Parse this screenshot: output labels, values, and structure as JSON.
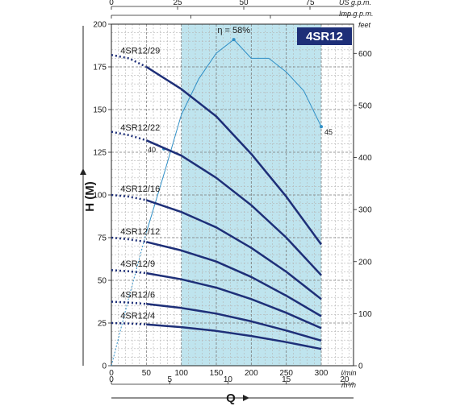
{
  "badge": "4SR12",
  "chart_data": {
    "type": "line",
    "xlabel": "Q",
    "ylabel": "H (M)",
    "x_unit": "l/min",
    "x_range": [
      0,
      300
    ],
    "y_range": [
      0,
      200
    ],
    "x_ticks": [
      "0",
      "50",
      "100",
      "150",
      "200",
      "250",
      "300"
    ],
    "y_ticks": [
      "0",
      "25",
      "50",
      "75",
      "100",
      "125",
      "150",
      "175",
      "200"
    ],
    "top_axis_us": {
      "unit": "US g.p.m.",
      "ticks": [
        "0",
        "25",
        "50",
        "75"
      ]
    },
    "top_axis_imp": {
      "unit": "Imp g.p.m.",
      "ticks": [
        "0",
        "25",
        "50"
      ]
    },
    "bottom_axis_m3h": {
      "unit": "m³/h",
      "ticks": [
        "0",
        "5",
        "10",
        "15",
        "20"
      ]
    },
    "right_axis_feet": {
      "unit": "feet",
      "ticks": [
        "0",
        "100",
        "200",
        "300",
        "400",
        "500",
        "600"
      ]
    },
    "operating_range": [
      100,
      300
    ],
    "series": [
      {
        "name": "4SR12/29",
        "x": [
          0,
          25,
          50,
          100,
          150,
          200,
          250,
          300
        ],
        "y": [
          182,
          180,
          175,
          162,
          146,
          124,
          99,
          71
        ]
      },
      {
        "name": "4SR12/22",
        "x": [
          0,
          25,
          50,
          100,
          150,
          200,
          250,
          300
        ],
        "y": [
          137,
          135,
          132,
          123,
          110,
          94,
          75,
          53
        ]
      },
      {
        "name": "4SR12/16",
        "x": [
          0,
          25,
          50,
          100,
          150,
          200,
          250,
          300
        ],
        "y": [
          100,
          99,
          97,
          90,
          81,
          69,
          55,
          39
        ]
      },
      {
        "name": "4SR12/12",
        "x": [
          0,
          25,
          50,
          100,
          150,
          200,
          250,
          300
        ],
        "y": [
          75,
          74,
          72.5,
          67.5,
          61,
          52,
          41,
          29
        ]
      },
      {
        "name": "4SR12/9",
        "x": [
          0,
          25,
          50,
          100,
          150,
          200,
          250,
          300
        ],
        "y": [
          56,
          55.3,
          54.2,
          50.6,
          45.7,
          39,
          31,
          22
        ]
      },
      {
        "name": "4SR12/6",
        "x": [
          0,
          25,
          50,
          100,
          150,
          200,
          250,
          300
        ],
        "y": [
          37.5,
          37,
          36.2,
          33.8,
          30.5,
          26,
          20.6,
          14.7
        ]
      },
      {
        "name": "4SR12/4",
        "x": [
          0,
          25,
          50,
          100,
          150,
          200,
          250,
          300
        ],
        "y": [
          25,
          24.7,
          24.2,
          22.6,
          20.4,
          17.4,
          13.8,
          9.8
        ]
      }
    ],
    "efficiency": {
      "label": "η = 58%",
      "x": [
        0,
        25,
        50,
        75,
        100,
        125,
        150,
        175,
        200,
        225,
        250,
        275,
        300
      ],
      "y": [
        0,
        40,
        78,
        112,
        147,
        168,
        183,
        191,
        180,
        180,
        172,
        161,
        140
      ],
      "points": [
        {
          "label": "40",
          "x": 75,
          "y": 127
        },
        {
          "label": "45",
          "x": 300,
          "y": 140
        }
      ]
    }
  }
}
